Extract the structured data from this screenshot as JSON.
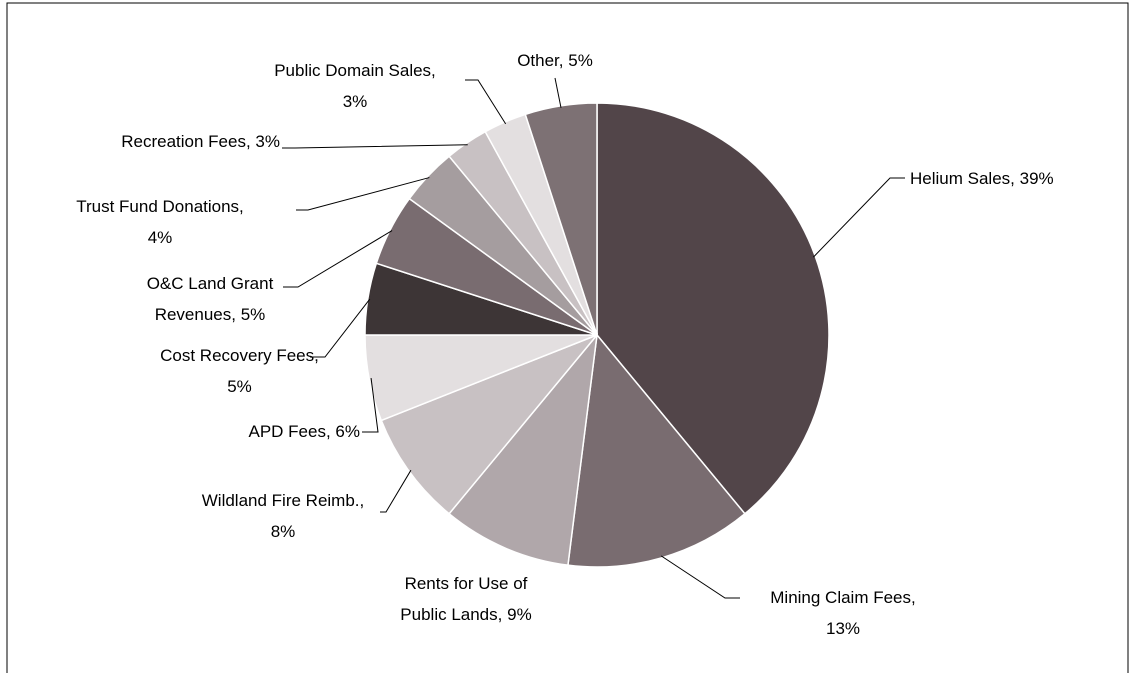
{
  "chart_data": {
    "type": "pie",
    "categories": [
      "Helium Sales,",
      "Mining Claim Fees,",
      "Rents for Use of Public Lands,",
      "Wildland Fire Reimb.,",
      "APD Fees,",
      "Cost Recovery Fees,",
      "O&C Land Grant Revenues,",
      "Trust Fund Donations,",
      "Recreation Fees,",
      "Public Domain Sales,",
      "Other,"
    ],
    "values": [
      39,
      13,
      9,
      8,
      6,
      5,
      5,
      4,
      3,
      3,
      5
    ],
    "value_labels": [
      "39%",
      "13%",
      "9%",
      "8%",
      "6%",
      "5%",
      "5%",
      "4%",
      "3%",
      "3%",
      "5%"
    ],
    "colors": [
      "#524549",
      "#796c70",
      "#b0a7aa",
      "#c8c1c3",
      "#e3dfe0",
      "#3d3536",
      "#796c70",
      "#a59d9f",
      "#c8c1c3",
      "#e3dfe0",
      "#7d7174"
    ]
  }
}
